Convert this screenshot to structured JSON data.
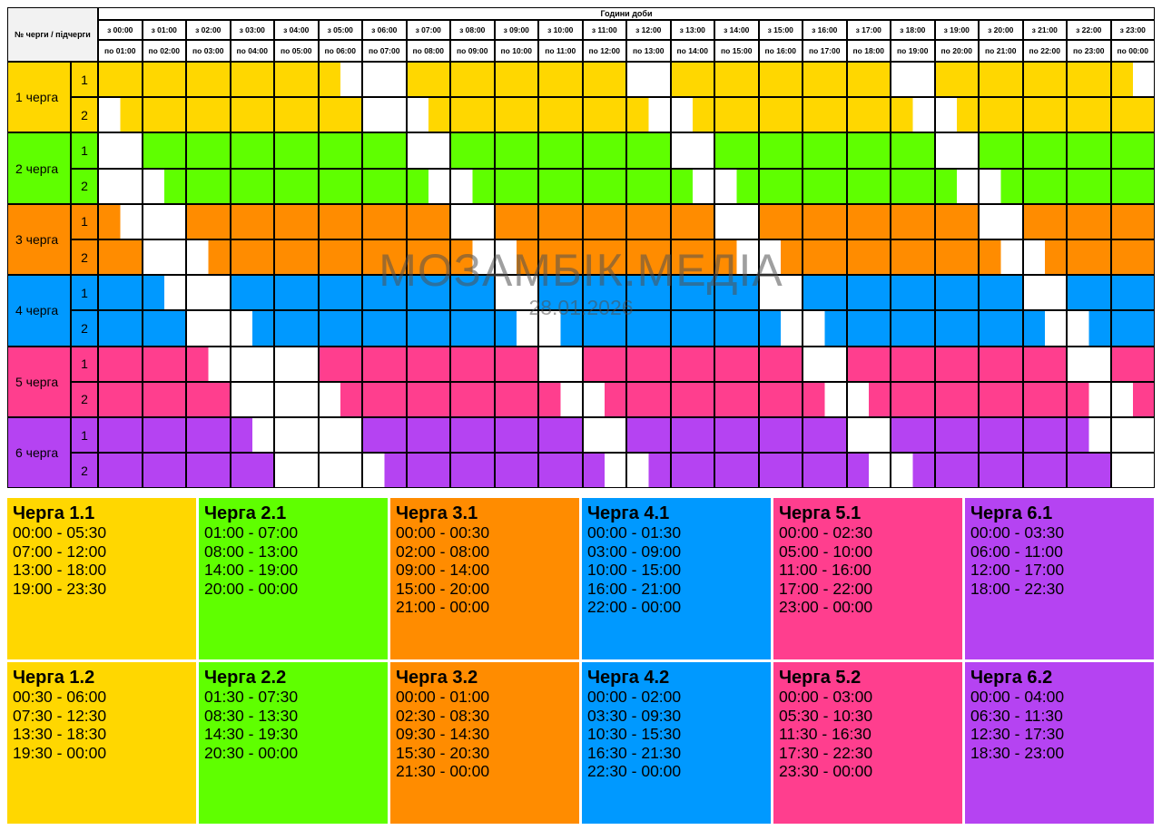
{
  "header": {
    "corner_label": "№ черги / підчерги",
    "hours_title": "Години доби",
    "from_labels": [
      "з 00:00",
      "з 01:00",
      "з 02:00",
      "з 03:00",
      "з 04:00",
      "з 05:00",
      "з 06:00",
      "з 07:00",
      "з 08:00",
      "з 09:00",
      "з 10:00",
      "з 11:00",
      "з 12:00",
      "з 13:00",
      "з 14:00",
      "з 15:00",
      "з 16:00",
      "з 17:00",
      "з 18:00",
      "з 19:00",
      "з 20:00",
      "з 21:00",
      "з 22:00",
      "з 23:00"
    ],
    "to_labels": [
      "по 01:00",
      "по 02:00",
      "по 03:00",
      "по 04:00",
      "по 05:00",
      "по 06:00",
      "по 07:00",
      "по 08:00",
      "по 09:00",
      "по 10:00",
      "по 11:00",
      "по 12:00",
      "по 13:00",
      "по 14:00",
      "по 15:00",
      "по 16:00",
      "по 17:00",
      "по 18:00",
      "по 19:00",
      "по 20:00",
      "по 21:00",
      "по 22:00",
      "по 23:00",
      "по 00:00"
    ]
  },
  "queues": [
    {
      "label": "1 черга",
      "color": "#FFD700",
      "light": "#FFF0A8",
      "subqueues": [
        {
          "label": "1",
          "card_title": "Черга 1.1",
          "intervals": [
            "00:00 - 05:30",
            "07:00 - 12:00",
            "13:00 - 18:00",
            "19:00 - 23:30"
          ]
        },
        {
          "label": "2",
          "card_title": "Черга 1.2",
          "intervals": [
            "00:30 - 06:00",
            "07:30 - 12:30",
            "13:30 - 18:30",
            "19:30 - 00:00"
          ]
        }
      ]
    },
    {
      "label": "2 черга",
      "color": "#5FFF00",
      "light": "#C8F8B0",
      "subqueues": [
        {
          "label": "1",
          "card_title": "Черга 2.1",
          "intervals": [
            "01:00 - 07:00",
            "08:00 - 13:00",
            "14:00 - 19:00",
            "20:00 - 00:00"
          ]
        },
        {
          "label": "2",
          "card_title": "Черга 2.2",
          "intervals": [
            "01:30 - 07:30",
            "08:30 - 13:30",
            "14:30 - 19:30",
            "20:30 - 00:00"
          ]
        }
      ]
    },
    {
      "label": "3 черга",
      "color": "#FF8C00",
      "light": "#FFD5A5",
      "subqueues": [
        {
          "label": "1",
          "card_title": "Черга 3.1",
          "intervals": [
            "00:00 - 00:30",
            "02:00 - 08:00",
            "09:00 - 14:00",
            "15:00 - 20:00",
            "21:00 - 00:00"
          ]
        },
        {
          "label": "2",
          "card_title": "Черга 3.2",
          "intervals": [
            "00:00 - 01:00",
            "02:30 - 08:30",
            "09:30 - 14:30",
            "15:30 - 20:30",
            "21:30 - 00:00"
          ]
        }
      ]
    },
    {
      "label": "4 черга",
      "color": "#0099FF",
      "light": "#A8DCFF",
      "subqueues": [
        {
          "label": "1",
          "card_title": "Черга 4.1",
          "intervals": [
            "00:00 - 01:30",
            "03:00 - 09:00",
            "10:00 - 15:00",
            "16:00 - 21:00",
            "22:00 - 00:00"
          ]
        },
        {
          "label": "2",
          "card_title": "Черга 4.2",
          "intervals": [
            "00:00 - 02:00",
            "03:30 - 09:30",
            "10:30 - 15:30",
            "16:30 - 21:30",
            "22:30 - 00:00"
          ]
        }
      ]
    },
    {
      "label": "5 черга",
      "color": "#FF3E8E",
      "light": "#FFB0CE",
      "subqueues": [
        {
          "label": "1",
          "card_title": "Черга 5.1",
          "intervals": [
            "00:00 - 02:30",
            "05:00 - 10:00",
            "11:00 - 16:00",
            "17:00 - 22:00",
            "23:00 - 00:00"
          ]
        },
        {
          "label": "2",
          "card_title": "Черга 5.2",
          "intervals": [
            "00:00 - 03:00",
            "05:30 - 10:30",
            "11:30 - 16:30",
            "17:30 - 22:30",
            "23:30 - 00:00"
          ]
        }
      ]
    },
    {
      "label": "6 черга",
      "color": "#B543F2",
      "light": "#E6B8F8",
      "subqueues": [
        {
          "label": "1",
          "card_title": "Черга 6.1",
          "intervals": [
            "00:00 - 03:30",
            "06:00 - 11:00",
            "12:00 - 17:00",
            "18:00 - 22:30"
          ]
        },
        {
          "label": "2",
          "card_title": "Черга 6.2",
          "intervals": [
            "00:00 - 04:00",
            "06:30 - 11:30",
            "12:30 - 17:30",
            "18:30 - 23:00"
          ]
        }
      ]
    }
  ],
  "watermark": {
    "title": "МОЗАМБІК.МЕДІА",
    "date": "28.01.2026"
  },
  "colors": {
    "grid_line": "#000000",
    "free": "#FFFFFF",
    "header_bg": "#FFFFFF",
    "label_bg": "#F2F2F2"
  }
}
